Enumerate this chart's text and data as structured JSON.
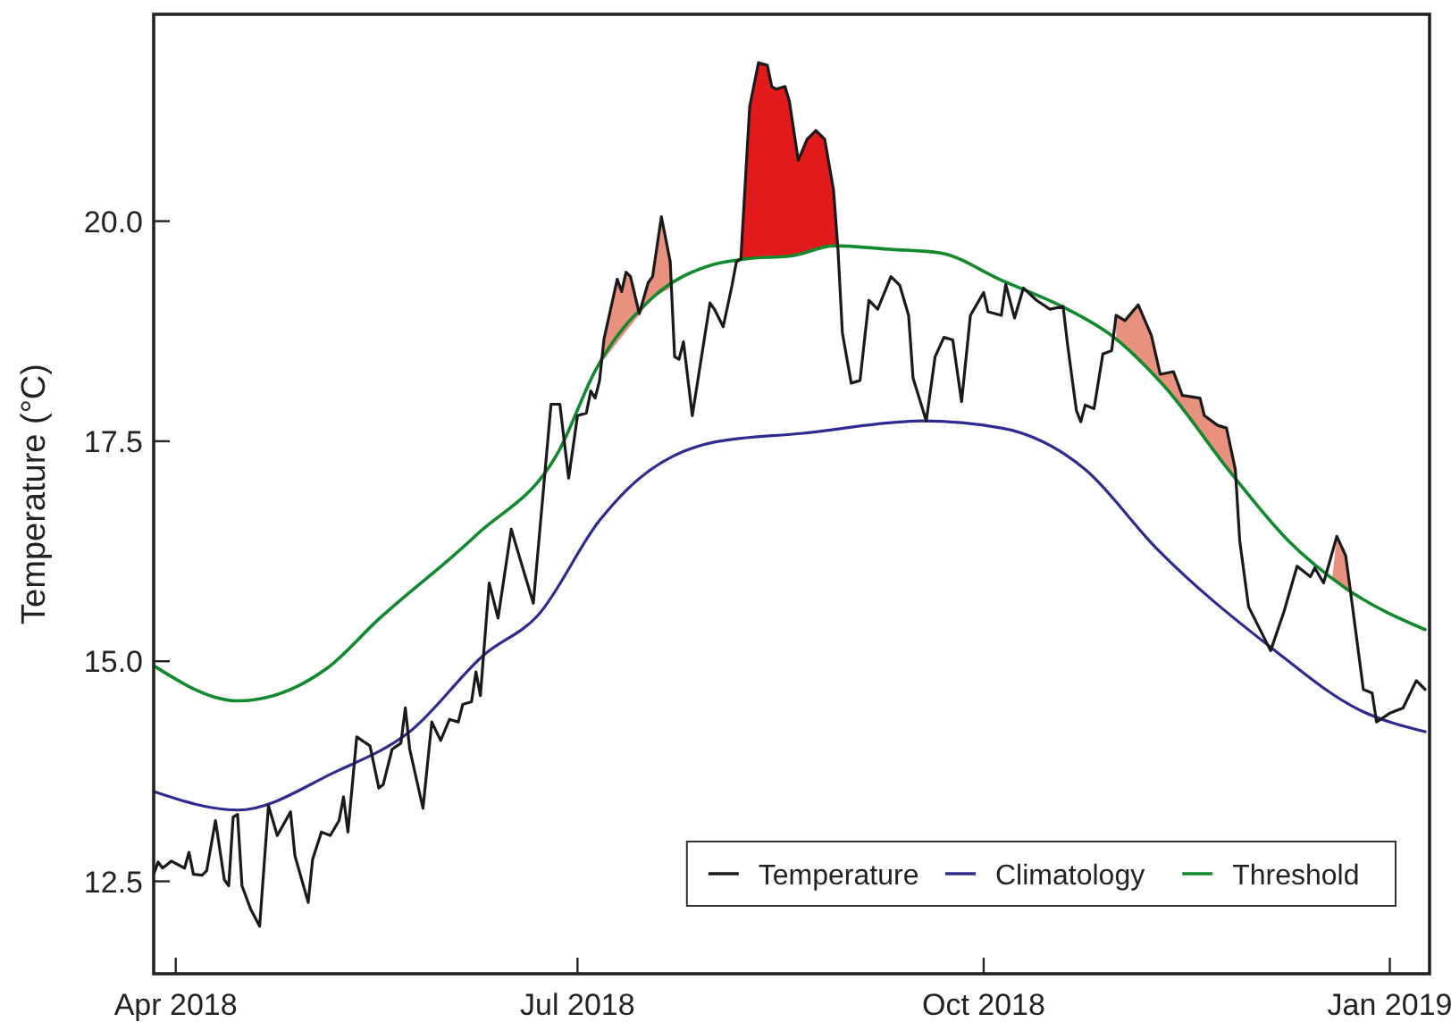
{
  "chart_data": {
    "type": "line",
    "ylabel": "Temperature (°C)",
    "xlim": [
      "2018-03-27",
      "2019-01-10"
    ],
    "ylim": [
      11.45,
      22.35
    ],
    "xticks": [
      {
        "value": "2018-04-01",
        "label": "Apr 2018"
      },
      {
        "value": "2018-07-01",
        "label": "Jul 2018"
      },
      {
        "value": "2018-10-01",
        "label": "Oct 2018"
      },
      {
        "value": "2019-01-01",
        "label": "Jan 2019"
      }
    ],
    "yticks": [
      12.5,
      {
        "value": 15,
        "label": "15.0"
      },
      17.5,
      {
        "value": 20,
        "label": "20.0"
      }
    ],
    "grid": false,
    "legend": "bottom right",
    "line_style": "solid",
    "marker": "none",
    "series": [
      {
        "type": "area",
        "color": "#e8917e",
        "x": [
          "2018-07-07",
          "2018-07-10",
          "2018-07-11",
          "2018-07-12",
          "2018-07-13",
          "2018-07-15",
          "2018-07-17",
          "2018-07-18",
          "2018-07-20",
          "2018-07-22"
        ],
        "values": [
          18.66,
          19.34,
          19.2,
          19.42,
          19.37,
          18.95,
          19.3,
          19.37,
          20.05,
          19.54
        ]
      },
      {
        "type": "area",
        "color": "#e31a1c",
        "x": [
          "2018-08-07",
          "2018-08-09",
          "2018-08-11",
          "2018-08-13",
          "2018-08-14",
          "2018-08-15",
          "2018-08-17",
          "2018-08-18",
          "2018-08-20",
          "2018-08-22",
          "2018-08-24",
          "2018-08-26",
          "2018-08-28",
          "2018-08-29"
        ],
        "values": [
          19.57,
          21.3,
          21.8,
          21.77,
          21.53,
          21.5,
          21.53,
          21.36,
          20.69,
          20.93,
          21.03,
          20.93,
          20.35,
          19.72
        ]
      },
      {
        "type": "area",
        "color": "#e8917e",
        "x": [
          "2018-10-31",
          "2018-11-02",
          "2018-11-05",
          "2018-11-08",
          "2018-11-10",
          "2018-11-13",
          "2018-11-15",
          "2018-11-19",
          "2018-11-20",
          "2018-11-23",
          "2018-11-25",
          "2018-11-27"
        ],
        "values": [
          18.93,
          18.87,
          19.05,
          18.7,
          18.26,
          18.29,
          18.02,
          17.99,
          17.79,
          17.68,
          17.65,
          17.18
        ]
      },
      {
        "type": "area",
        "color": "#e8917e",
        "x": [
          "2018-12-19",
          "2018-12-20",
          "2018-12-22",
          "2018-12-23"
        ],
        "values": [
          15.96,
          16.42,
          16.2,
          15.83
        ]
      },
      {
        "name": "Temperature",
        "color": "#1a1a1a",
        "x": [
          "2018-03-27",
          "2018-03-28",
          "2018-03-29",
          "2018-03-31",
          "2018-04-03",
          "2018-04-04",
          "2018-04-05",
          "2018-04-07",
          "2018-04-08",
          "2018-04-10",
          "2018-04-12",
          "2018-04-13",
          "2018-04-14",
          "2018-04-15",
          "2018-04-16",
          "2018-04-18",
          "2018-04-20",
          "2018-04-22",
          "2018-04-24",
          "2018-04-27",
          "2018-04-28",
          "2018-05-01",
          "2018-05-02",
          "2018-05-04",
          "2018-05-06",
          "2018-05-08",
          "2018-05-09",
          "2018-05-10",
          "2018-05-12",
          "2018-05-15",
          "2018-05-17",
          "2018-05-18",
          "2018-05-20",
          "2018-05-22",
          "2018-05-23",
          "2018-05-24",
          "2018-05-27",
          "2018-05-29",
          "2018-05-31",
          "2018-06-02",
          "2018-06-04",
          "2018-06-05",
          "2018-06-07",
          "2018-06-08",
          "2018-06-09",
          "2018-06-11",
          "2018-06-13",
          "2018-06-16",
          "2018-06-18",
          "2018-06-21",
          "2018-06-25",
          "2018-06-27",
          "2018-06-29",
          "2018-07-01",
          "2018-07-03",
          "2018-07-04",
          "2018-07-05",
          "2018-07-06",
          "2018-07-07",
          "2018-07-10",
          "2018-07-11",
          "2018-07-12",
          "2018-07-13",
          "2018-07-15",
          "2018-07-17",
          "2018-07-18",
          "2018-07-20",
          "2018-07-22",
          "2018-07-23",
          "2018-07-24",
          "2018-07-25",
          "2018-07-27",
          "2018-07-31",
          "2018-08-01",
          "2018-08-03",
          "2018-08-05",
          "2018-08-06",
          "2018-08-07",
          "2018-08-09",
          "2018-08-11",
          "2018-08-13",
          "2018-08-14",
          "2018-08-15",
          "2018-08-17",
          "2018-08-18",
          "2018-08-20",
          "2018-08-22",
          "2018-08-24",
          "2018-08-26",
          "2018-08-28",
          "2018-08-29",
          "2018-08-30",
          "2018-09-01",
          "2018-09-03",
          "2018-09-05",
          "2018-09-07",
          "2018-09-10",
          "2018-09-12",
          "2018-09-14",
          "2018-09-15",
          "2018-09-18",
          "2018-09-20",
          "2018-09-22",
          "2018-09-24",
          "2018-09-26",
          "2018-09-28",
          "2018-10-01",
          "2018-10-02",
          "2018-10-05",
          "2018-10-06",
          "2018-10-08",
          "2018-10-10",
          "2018-10-13",
          "2018-10-16",
          "2018-10-19",
          "2018-10-20",
          "2018-10-22",
          "2018-10-23",
          "2018-10-24",
          "2018-10-26",
          "2018-10-28",
          "2018-10-30",
          "2018-10-31",
          "2018-11-02",
          "2018-11-05",
          "2018-11-08",
          "2018-11-10",
          "2018-11-13",
          "2018-11-15",
          "2018-11-19",
          "2018-11-20",
          "2018-11-23",
          "2018-11-25",
          "2018-11-27",
          "2018-11-28",
          "2018-11-30",
          "2018-12-05",
          "2018-12-08",
          "2018-12-11",
          "2018-12-14",
          "2018-12-15",
          "2018-12-17",
          "2018-12-20",
          "2018-12-22",
          "2018-12-23",
          "2018-12-26",
          "2018-12-28",
          "2018-12-29",
          "2019-01-01",
          "2019-01-04",
          "2019-01-07",
          "2019-01-09"
        ],
        "values": [
          12.58,
          12.72,
          12.65,
          12.73,
          12.65,
          12.83,
          12.58,
          12.57,
          12.62,
          13.19,
          12.52,
          12.45,
          13.23,
          13.26,
          12.45,
          12.18,
          11.99,
          13.36,
          13.02,
          13.29,
          12.79,
          12.26,
          12.75,
          13.06,
          13.02,
          13.19,
          13.46,
          13.06,
          14.14,
          14.04,
          13.56,
          13.6,
          14.0,
          14.07,
          14.47,
          14.0,
          13.33,
          14.31,
          14.1,
          14.34,
          14.31,
          14.51,
          14.54,
          14.88,
          14.61,
          15.89,
          15.49,
          16.5,
          16.16,
          15.66,
          17.92,
          17.92,
          17.08,
          17.79,
          17.82,
          18.07,
          17.99,
          18.19,
          18.66,
          19.34,
          19.2,
          19.42,
          19.37,
          18.95,
          19.3,
          19.37,
          20.05,
          19.54,
          18.46,
          18.43,
          18.63,
          17.79,
          19.07,
          19.0,
          18.8,
          19.27,
          19.54,
          19.57,
          21.3,
          21.8,
          21.77,
          21.53,
          21.5,
          21.53,
          21.36,
          20.69,
          20.93,
          21.03,
          20.93,
          20.35,
          19.68,
          18.73,
          18.16,
          18.19,
          19.1,
          19.0,
          19.37,
          19.27,
          18.93,
          18.22,
          17.73,
          18.46,
          18.68,
          18.65,
          17.95,
          18.93,
          19.19,
          18.97,
          18.93,
          19.28,
          18.9,
          19.24,
          19.1,
          19.0,
          19.03,
          18.6,
          17.85,
          17.72,
          17.91,
          17.87,
          18.49,
          18.53,
          18.93,
          18.87,
          19.05,
          18.7,
          18.26,
          18.29,
          18.02,
          17.99,
          17.79,
          17.68,
          17.65,
          17.18,
          16.37,
          15.62,
          15.12,
          15.56,
          16.08,
          15.96,
          16.06,
          15.89,
          16.42,
          16.2,
          15.83,
          14.68,
          14.64,
          14.31,
          14.41,
          14.47,
          14.78,
          14.68
        ]
      },
      {
        "name": "Climatology",
        "color": "#2e2a8f",
        "x": [
          "2018-03-27",
          "2018-04-15",
          "2018-05-07",
          "2018-05-24",
          "2018-06-10",
          "2018-06-22",
          "2018-07-06",
          "2018-07-12",
          "2018-08-01",
          "2018-08-21",
          "2018-09-17",
          "2018-10-05",
          "2018-10-24",
          "2018-11-09",
          "2018-12-05",
          "2018-12-25",
          "2019-01-09"
        ],
        "values": [
          13.52,
          13.31,
          13.74,
          14.2,
          15.08,
          15.52,
          16.6,
          16.94,
          17.49,
          17.59,
          17.73,
          17.65,
          17.18,
          16.29,
          15.16,
          14.45,
          14.2
        ]
      },
      {
        "name": "Threshold",
        "color": "#118a2e",
        "x": [
          "2018-03-27",
          "2018-04-15",
          "2018-05-05",
          "2018-05-17",
          "2018-06-08",
          "2018-06-27",
          "2018-07-05",
          "2018-07-18",
          "2018-08-01",
          "2018-08-08",
          "2018-08-19",
          "2018-08-28",
          "2018-09-10",
          "2018-09-21",
          "2018-10-05",
          "2018-10-20",
          "2018-10-30",
          "2018-11-11",
          "2018-11-26",
          "2018-12-09",
          "2018-12-22",
          "2019-01-09"
        ],
        "values": [
          14.95,
          14.55,
          14.91,
          15.48,
          16.43,
          17.41,
          18.3,
          19.13,
          19.51,
          19.57,
          19.61,
          19.72,
          19.68,
          19.64,
          19.33,
          19.0,
          18.7,
          18.12,
          17.14,
          16.37,
          15.83,
          15.36
        ]
      }
    ]
  }
}
